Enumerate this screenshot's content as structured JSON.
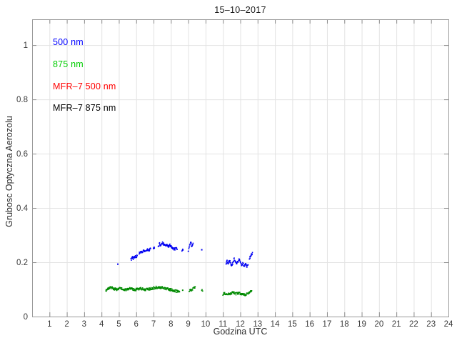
{
  "title": "15–10–2017",
  "axes": {
    "xlabel": "Godzina UTC",
    "ylabel": "Grubosc Optyczna Aerozolu"
  },
  "legend": [
    {
      "label": "500 nm",
      "color": "#0000ff"
    },
    {
      "label": "875 nm",
      "color": "#00cc00"
    },
    {
      "label": "MFR–7 500 nm",
      "color": "#ff0000"
    },
    {
      "label": "MFR–7 875 nm",
      "color": "#000000"
    }
  ],
  "colors": {
    "frame": "#9a9a9a",
    "grid": "#e3e3e3",
    "tick": "#8c8c8c",
    "tick_label": "#3a3a3a",
    "background": "#ffffff"
  },
  "chart_data": {
    "type": "scatter",
    "title": "15–10–2017",
    "xlabel": "Godzina UTC",
    "ylabel": "Grubosc Optyczna Aerozolu",
    "xlim": [
      0,
      24
    ],
    "ylim": [
      0,
      1.095
    ],
    "xticks": [
      1,
      2,
      3,
      4,
      5,
      6,
      7,
      8,
      9,
      10,
      11,
      12,
      13,
      14,
      15,
      16,
      17,
      18,
      19,
      20,
      21,
      22,
      23,
      24
    ],
    "yticks": [
      0,
      0.2,
      0.4,
      0.6,
      0.8,
      1
    ],
    "ytick_labels": [
      "0",
      "0.2",
      "0.4",
      "0.6",
      "0.8",
      "1"
    ],
    "grid": true,
    "legend_position": "top-left",
    "series": [
      {
        "name": "500 nm",
        "color": "#0000f2",
        "segments": [
          [
            [
              4.94,
              0.193
            ]
          ],
          [
            [
              5.7,
              0.21
            ],
            [
              5.78,
              0.218
            ],
            [
              5.85,
              0.214
            ],
            [
              5.93,
              0.221
            ],
            [
              6.01,
              0.219
            ],
            [
              6.06,
              0.224
            ]
          ],
          [
            [
              6.17,
              0.233
            ],
            [
              6.27,
              0.24
            ],
            [
              6.36,
              0.236
            ],
            [
              6.46,
              0.244
            ],
            [
              6.55,
              0.241
            ],
            [
              6.65,
              0.247
            ],
            [
              6.74,
              0.245
            ],
            [
              6.83,
              0.25
            ]
          ],
          [
            [
              6.99,
              0.25
            ],
            [
              7.05,
              0.252
            ]
          ],
          [
            [
              7.27,
              0.257
            ],
            [
              7.35,
              0.269
            ],
            [
              7.42,
              0.263
            ],
            [
              7.5,
              0.272
            ],
            [
              7.58,
              0.267
            ],
            [
              7.67,
              0.261
            ],
            [
              7.76,
              0.265
            ],
            [
              7.85,
              0.259
            ],
            [
              7.94,
              0.263
            ],
            [
              8.03,
              0.257
            ],
            [
              8.12,
              0.252
            ],
            [
              8.22,
              0.248
            ],
            [
              8.31,
              0.252
            ],
            [
              8.36,
              0.247
            ]
          ],
          [
            [
              8.64,
              0.244
            ],
            [
              8.7,
              0.245
            ]
          ],
          [
            [
              9.0,
              0.24
            ],
            [
              9.05,
              0.253
            ],
            [
              9.1,
              0.266
            ],
            [
              9.14,
              0.277
            ],
            [
              9.17,
              0.268
            ],
            [
              9.2,
              0.256
            ],
            [
              9.24,
              0.264
            ],
            [
              9.28,
              0.27
            ]
          ],
          [
            [
              9.78,
              0.246
            ]
          ],
          [
            [
              11.18,
              0.195
            ],
            [
              11.24,
              0.203
            ],
            [
              11.3,
              0.195
            ],
            [
              11.37,
              0.207
            ],
            [
              11.44,
              0.196
            ],
            [
              11.51,
              0.189
            ],
            [
              11.58,
              0.199
            ],
            [
              11.65,
              0.214
            ],
            [
              11.72,
              0.204
            ],
            [
              11.8,
              0.195
            ],
            [
              11.88,
              0.204
            ],
            [
              11.95,
              0.211
            ],
            [
              12.02,
              0.199
            ],
            [
              12.09,
              0.189
            ],
            [
              12.16,
              0.196
            ],
            [
              12.23,
              0.185
            ],
            [
              12.31,
              0.192
            ],
            [
              12.38,
              0.184
            ],
            [
              12.45,
              0.191
            ]
          ],
          [
            [
              12.52,
              0.214
            ],
            [
              12.58,
              0.221
            ],
            [
              12.64,
              0.228
            ],
            [
              12.7,
              0.236
            ]
          ]
        ]
      },
      {
        "name": "875 nm",
        "color": "#008a00",
        "segments": [
          [
            [
              4.25,
              0.094
            ],
            [
              4.33,
              0.099
            ],
            [
              4.45,
              0.106
            ],
            [
              4.55,
              0.108
            ],
            [
              4.65,
              0.104
            ],
            [
              4.78,
              0.101
            ],
            [
              4.9,
              0.1
            ],
            [
              5.05,
              0.103
            ],
            [
              5.2,
              0.101
            ],
            [
              5.35,
              0.098
            ],
            [
              5.5,
              0.1
            ],
            [
              5.65,
              0.103
            ],
            [
              5.8,
              0.101
            ],
            [
              5.95,
              0.099
            ],
            [
              6.1,
              0.101
            ],
            [
              6.25,
              0.103
            ],
            [
              6.4,
              0.101
            ],
            [
              6.55,
              0.099
            ],
            [
              6.7,
              0.101
            ],
            [
              6.85,
              0.103
            ],
            [
              7.0,
              0.105
            ],
            [
              7.15,
              0.107
            ],
            [
              7.3,
              0.108
            ],
            [
              7.45,
              0.107
            ],
            [
              7.6,
              0.105
            ],
            [
              7.75,
              0.103
            ],
            [
              7.9,
              0.1
            ],
            [
              8.05,
              0.098
            ],
            [
              8.2,
              0.096
            ],
            [
              8.35,
              0.093
            ],
            [
              8.5,
              0.091
            ]
          ],
          [
            [
              8.68,
              0.097
            ]
          ],
          [
            [
              9.05,
              0.095
            ],
            [
              9.12,
              0.1
            ],
            [
              9.18,
              0.096
            ],
            [
              9.25,
              0.102
            ],
            [
              9.32,
              0.106
            ],
            [
              9.4,
              0.11
            ]
          ],
          [
            [
              9.78,
              0.096
            ],
            [
              9.83,
              0.094
            ]
          ],
          [
            [
              11.0,
              0.083
            ],
            [
              11.15,
              0.085
            ],
            [
              11.3,
              0.082
            ],
            [
              11.45,
              0.086
            ],
            [
              11.6,
              0.088
            ],
            [
              11.75,
              0.084
            ],
            [
              11.9,
              0.086
            ],
            [
              12.05,
              0.083
            ],
            [
              12.2,
              0.08
            ],
            [
              12.35,
              0.082
            ],
            [
              12.5,
              0.086
            ],
            [
              12.58,
              0.091
            ],
            [
              12.66,
              0.095
            ]
          ]
        ]
      },
      {
        "name": "MFR-7 500 nm",
        "color": "#ff0000",
        "segments": []
      },
      {
        "name": "MFR-7 875 nm",
        "color": "#000000",
        "segments": []
      }
    ]
  }
}
